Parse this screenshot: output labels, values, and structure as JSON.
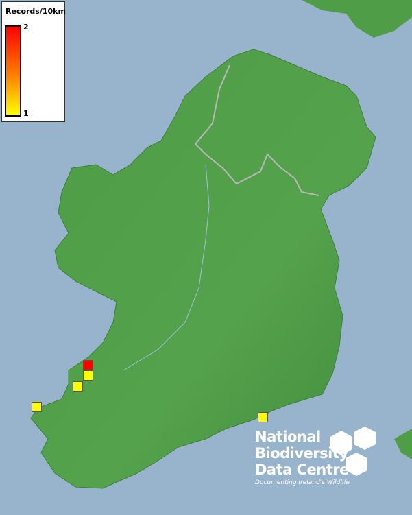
{
  "legend": {
    "title": "Records/10km",
    "max_label": "2",
    "min_label": "1",
    "max_color": "#ff0000",
    "min_color": "#ffff00"
  },
  "colors": {
    "sea": "#98b4cc",
    "land": "#4f9d47"
  },
  "records": [
    {
      "count": 2,
      "color": "#ff0000"
    },
    {
      "count": 1,
      "color": "#ffff00"
    },
    {
      "count": 1,
      "color": "#ffff00"
    },
    {
      "count": 1,
      "color": "#ffff00"
    },
    {
      "count": 1,
      "color": "#ffff00"
    }
  ],
  "logo": {
    "line1": "National",
    "line2": "Biodiversity",
    "line3": "Data Centre",
    "tagline": "Documenting Ireland's Wildlife"
  }
}
